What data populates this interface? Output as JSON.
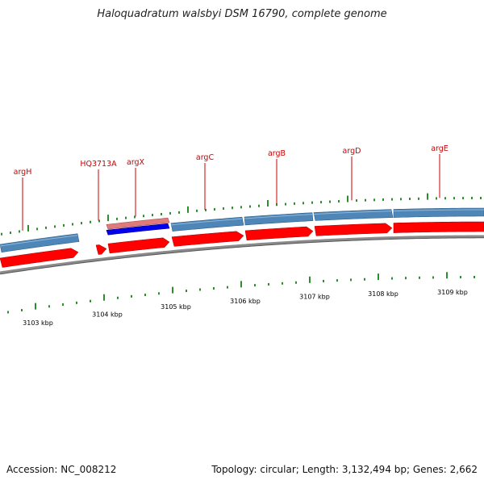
{
  "title": "Haloquadratum walsbyi DSM 16790, complete genome",
  "footer": {
    "accession": "Accession: NC_008212",
    "summary": "Topology: circular; Length: 3,132,494 bp; Genes: 2,662"
  },
  "colors": {
    "gene_label": "#cc0000",
    "tick": "#2e8b2e",
    "cds_forward": "#ff0000",
    "gene_band": "#4f86b8",
    "rrna_band": "#e07b7b",
    "rrna_feature": "#0000ee",
    "backbone": "#8a8a8a",
    "scale_label": "#000000"
  },
  "genes": [
    {
      "name": "argH"
    },
    {
      "name": "HQ3713A"
    },
    {
      "name": "argX"
    },
    {
      "name": "argC"
    },
    {
      "name": "argB"
    },
    {
      "name": "argD"
    },
    {
      "name": "argE"
    }
  ],
  "scale_labels": [
    "3103 kbp",
    "3104 kbp",
    "3105 kbp",
    "3106 kbp",
    "3107 kbp",
    "3108 kbp",
    "3109 kbp"
  ]
}
